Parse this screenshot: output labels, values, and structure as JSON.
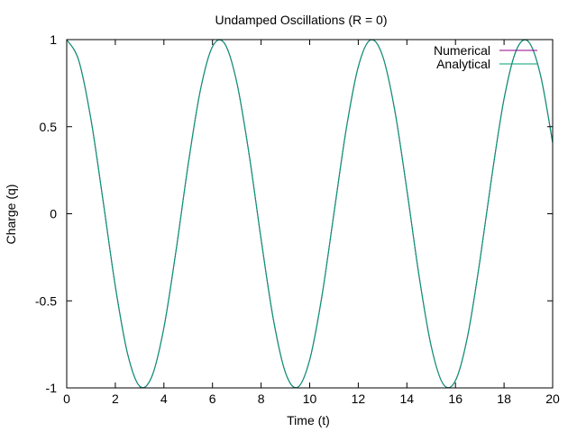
{
  "chart_data": {
    "type": "line",
    "title": "Undamped Oscillations (R = 0)",
    "xlabel": "Time (t)",
    "ylabel": "Charge (q)",
    "xlim": [
      0,
      20
    ],
    "ylim": [
      -1,
      1
    ],
    "xticks": [
      "0",
      "2",
      "4",
      "6",
      "8",
      "10",
      "12",
      "14",
      "16",
      "18",
      "20"
    ],
    "yticks": [
      "-1",
      "-0.5",
      "0",
      "0.5",
      "1"
    ],
    "grid": false,
    "legend_position": "top-right",
    "series": [
      {
        "name": "Numerical",
        "color": "#94008b",
        "x": [
          0,
          0.5,
          1,
          1.5,
          2,
          2.5,
          3,
          3.5,
          4,
          4.5,
          5,
          5.5,
          6,
          6.5,
          7,
          7.5,
          8,
          8.5,
          9,
          9.5,
          10,
          10.5,
          11,
          11.5,
          12,
          12.5,
          13,
          13.5,
          14,
          14.5,
          15,
          15.5,
          16,
          16.5,
          17,
          17.5,
          18,
          18.5,
          19,
          19.5,
          20
        ],
        "y": [
          1,
          0.878,
          0.54,
          0.071,
          -0.416,
          -0.801,
          -0.99,
          -0.936,
          -0.654,
          -0.211,
          0.284,
          0.709,
          0.96,
          0.977,
          0.754,
          0.347,
          -0.146,
          -0.602,
          -0.911,
          -0.997,
          -0.839,
          -0.476,
          0.004,
          0.483,
          0.844,
          0.998,
          0.907,
          0.595,
          0.137,
          -0.355,
          -0.76,
          -0.979,
          -0.958,
          -0.703,
          -0.275,
          0.219,
          0.66,
          0.938,
          0.989,
          0.796,
          0.408
        ]
      },
      {
        "name": "Analytical",
        "color": "#009e73",
        "x": [
          0,
          0.5,
          1,
          1.5,
          2,
          2.5,
          3,
          3.5,
          4,
          4.5,
          5,
          5.5,
          6,
          6.5,
          7,
          7.5,
          8,
          8.5,
          9,
          9.5,
          10,
          10.5,
          11,
          11.5,
          12,
          12.5,
          13,
          13.5,
          14,
          14.5,
          15,
          15.5,
          16,
          16.5,
          17,
          17.5,
          18,
          18.5,
          19,
          19.5,
          20
        ],
        "y": [
          1,
          0.878,
          0.54,
          0.071,
          -0.416,
          -0.801,
          -0.99,
          -0.936,
          -0.654,
          -0.211,
          0.284,
          0.709,
          0.96,
          0.977,
          0.754,
          0.347,
          -0.146,
          -0.602,
          -0.911,
          -0.997,
          -0.839,
          -0.476,
          0.004,
          0.483,
          0.844,
          0.998,
          0.907,
          0.595,
          0.137,
          -0.355,
          -0.76,
          -0.979,
          -0.958,
          -0.703,
          -0.275,
          0.219,
          0.66,
          0.938,
          0.989,
          0.796,
          0.408
        ]
      }
    ]
  }
}
